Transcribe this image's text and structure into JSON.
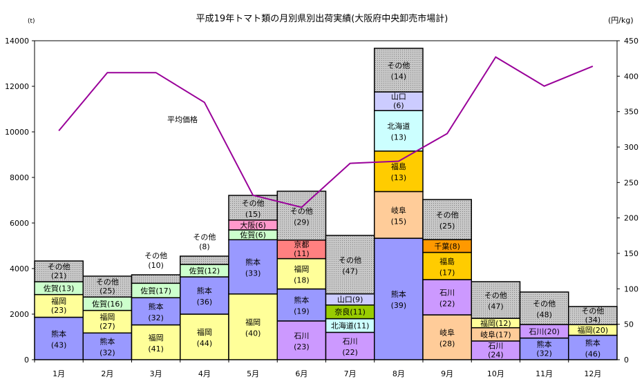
{
  "chart_data": {
    "type": "bar",
    "subtype": "variable-height stacked share bars with line",
    "title": "平成19年トマト類の月別県別出荷実績(大阪府中央卸売市場計)",
    "ylabel_left": "(t)",
    "ylabel_right": "(円/kg)",
    "ylim_left": [
      0,
      14000
    ],
    "ylim_right": [
      0,
      450
    ],
    "yticks_left": [
      0,
      2000,
      4000,
      6000,
      8000,
      10000,
      12000,
      14000
    ],
    "yticks_right": [
      0,
      50,
      100,
      150,
      200,
      250,
      300,
      350,
      400,
      450
    ],
    "categories": [
      "1月",
      "2月",
      "3月",
      "4月",
      "5月",
      "6月",
      "7月",
      "8月",
      "9月",
      "10月",
      "11月",
      "12月"
    ],
    "totals_t": [
      4333,
      3667,
      3727,
      4545,
      7212,
      7394,
      5455,
      13667,
      7030,
      3424,
      2970,
      2333
    ],
    "line_series": {
      "name": "平均価格",
      "values": [
        323,
        405,
        405,
        363,
        232,
        215,
        277,
        280,
        319,
        427,
        386,
        414
      ]
    },
    "colors": {
      "熊本": "#9999ff",
      "福岡": "#ffff99",
      "佐賀": "#ccffcc",
      "その他": "#c0c0c0",
      "大阪": "#ff99cc",
      "京都": "#ff8080",
      "石川": "#cc99ff",
      "北海道": "#ccffff",
      "奈良": "#99cc00",
      "山口": "#ccccff",
      "岐阜": "#ffcc99",
      "福島": "#ffcc00",
      "千葉": "#ff9900",
      "line": "#990099"
    },
    "segments": [
      [
        [
          "熊本",
          43
        ],
        [
          "福岡",
          23
        ],
        [
          "佐賀",
          13
        ],
        [
          "その他",
          21
        ]
      ],
      [
        [
          "熊本",
          32
        ],
        [
          "福岡",
          27
        ],
        [
          "佐賀",
          16
        ],
        [
          "その他",
          25
        ]
      ],
      [
        [
          "福岡",
          41
        ],
        [
          "熊本",
          32
        ],
        [
          "佐賀",
          17
        ],
        [
          "その他",
          10
        ]
      ],
      [
        [
          "福岡",
          44
        ],
        [
          "熊本",
          36
        ],
        [
          "佐賀",
          12
        ],
        [
          "その他",
          8
        ]
      ],
      [
        [
          "福岡",
          40
        ],
        [
          "熊本",
          33
        ],
        [
          "佐賀",
          6
        ],
        [
          "大阪",
          6
        ],
        [
          "その他",
          15
        ]
      ],
      [
        [
          "石川",
          23
        ],
        [
          "熊本",
          19
        ],
        [
          "福岡",
          18
        ],
        [
          "京都",
          11
        ],
        [
          "その他",
          29
        ]
      ],
      [
        [
          "石川",
          22
        ],
        [
          "北海道",
          11
        ],
        [
          "奈良",
          11
        ],
        [
          "山口",
          9
        ],
        [
          "その他",
          47
        ]
      ],
      [
        [
          "熊本",
          39
        ],
        [
          "岐阜",
          15
        ],
        [
          "福島",
          13
        ],
        [
          "北海道",
          13
        ],
        [
          "山口",
          6
        ],
        [
          "その他",
          14
        ]
      ],
      [
        [
          "岐阜",
          28
        ],
        [
          "石川",
          22
        ],
        [
          "福島",
          17
        ],
        [
          "千葉",
          8
        ],
        [
          "その他",
          25
        ]
      ],
      [
        [
          "石川",
          24
        ],
        [
          "岐阜",
          17
        ],
        [
          "福岡",
          12
        ],
        [
          "その他",
          47
        ]
      ],
      [
        [
          "熊本",
          32
        ],
        [
          "石川",
          20
        ],
        [
          "その他",
          48
        ]
      ],
      [
        [
          "熊本",
          46
        ],
        [
          "福岡",
          20
        ],
        [
          "その他",
          34
        ]
      ]
    ]
  }
}
